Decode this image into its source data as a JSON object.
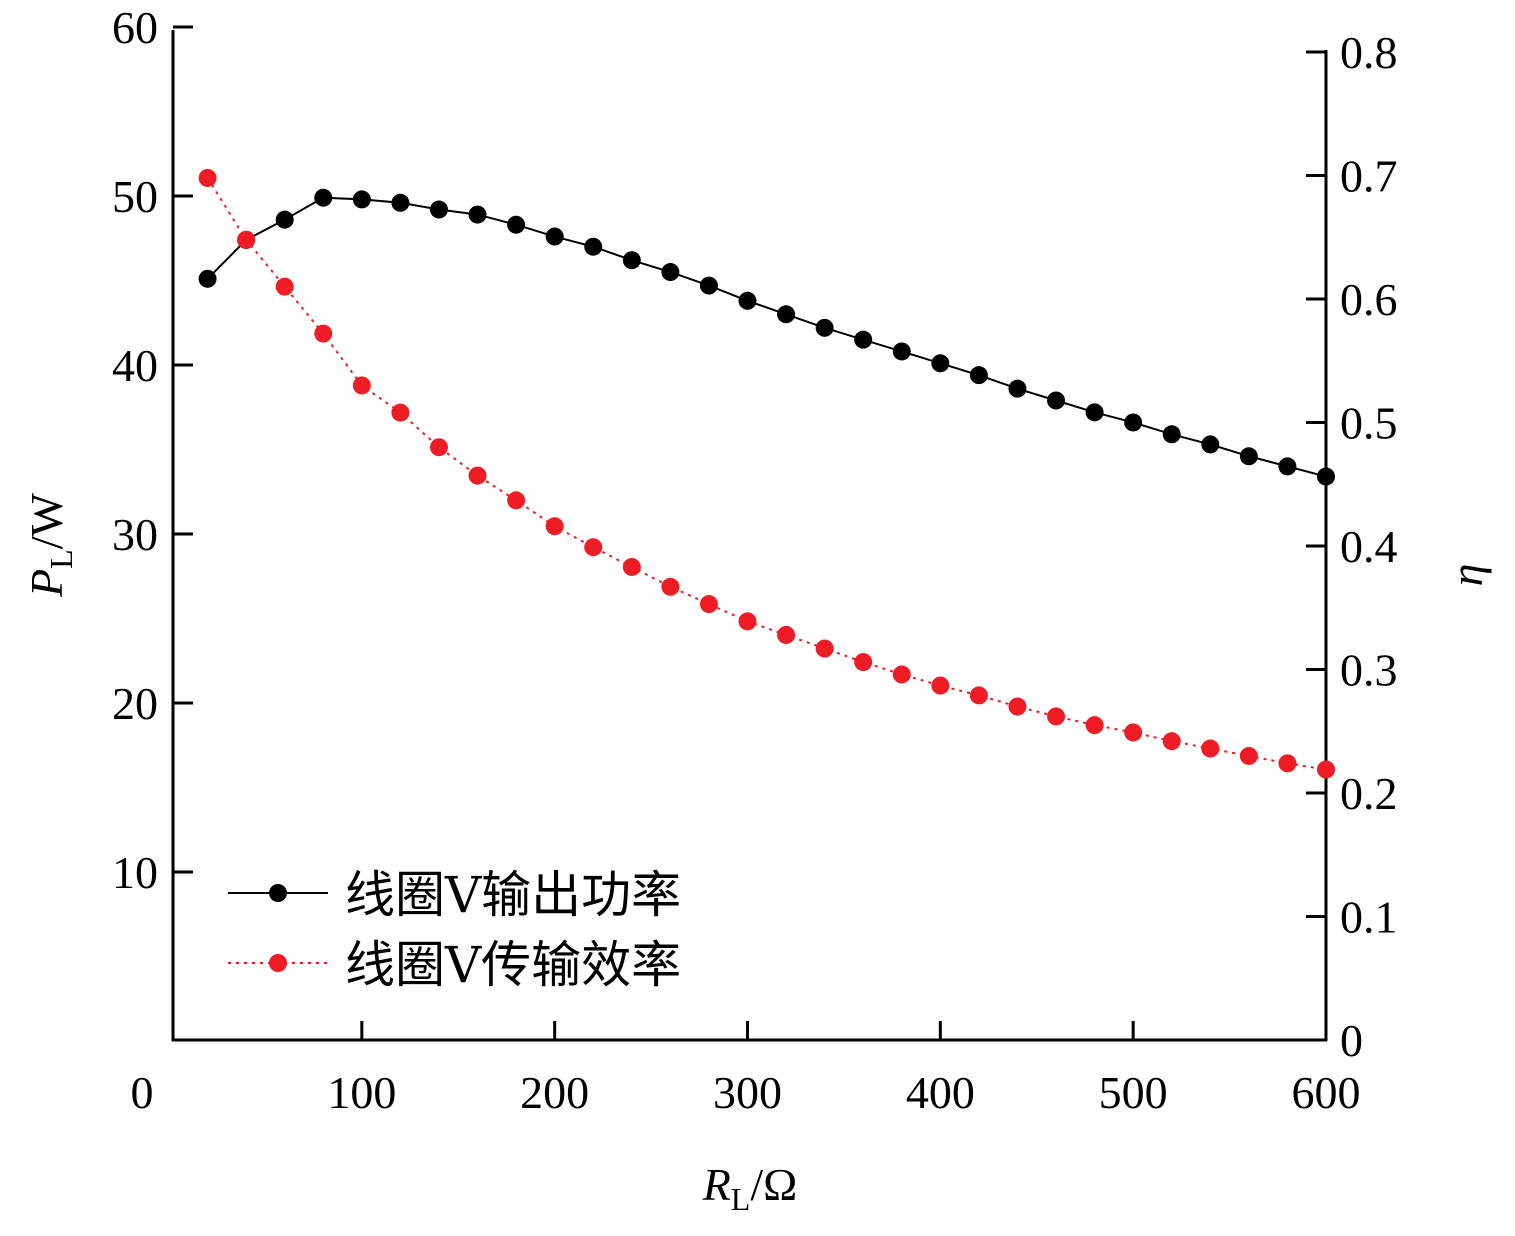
{
  "chart_data": {
    "type": "line",
    "xlabel": {
      "main": "R",
      "sub": "L",
      "unit": "/Ω"
    },
    "ylabel_left": {
      "main": "P",
      "sub": "L",
      "unit": "/W"
    },
    "ylabel_right": "η",
    "xlim": [
      0,
      600
    ],
    "ylim_left": [
      0,
      60
    ],
    "ylim_right": [
      0,
      0.8
    ],
    "x_ticks": [
      "0",
      "100",
      "200",
      "300",
      "400",
      "500",
      "600"
    ],
    "y_left_ticks": [
      "10",
      "20",
      "30",
      "40",
      "50",
      "60"
    ],
    "y_right_ticks": [
      "0",
      "0.1",
      "0.2",
      "0.3",
      "0.4",
      "0.5",
      "0.6",
      "0.7",
      "0.8"
    ],
    "grid": false,
    "legend_position": "bottom-left",
    "x": [
      20,
      40,
      60,
      80,
      100,
      120,
      140,
      160,
      180,
      200,
      220,
      240,
      260,
      280,
      300,
      320,
      340,
      360,
      380,
      400,
      420,
      440,
      460,
      480,
      500,
      520,
      540,
      560,
      580,
      600
    ],
    "series": [
      {
        "name": "线圈Ⅴ输出功率",
        "axis": "left",
        "color": "#000000",
        "line_style": "solid",
        "values": [
          45.1,
          47.4,
          48.6,
          49.9,
          49.8,
          49.6,
          49.2,
          48.9,
          48.3,
          47.6,
          47.0,
          46.2,
          45.5,
          44.7,
          43.8,
          43.0,
          42.2,
          41.5,
          40.8,
          40.1,
          39.4,
          38.6,
          37.9,
          37.2,
          36.6,
          35.9,
          35.3,
          34.6,
          34.0,
          33.4
        ]
      },
      {
        "name": "线圈Ⅴ传输效率",
        "axis": "right",
        "color": "#ee1c25",
        "line_style": "dotted",
        "values": [
          0.698,
          0.648,
          0.61,
          0.572,
          0.53,
          0.508,
          0.48,
          0.457,
          0.437,
          0.416,
          0.399,
          0.383,
          0.367,
          0.353,
          0.339,
          0.328,
          0.317,
          0.306,
          0.296,
          0.287,
          0.279,
          0.27,
          0.262,
          0.255,
          0.249,
          0.242,
          0.236,
          0.23,
          0.224,
          0.219
        ]
      }
    ]
  }
}
